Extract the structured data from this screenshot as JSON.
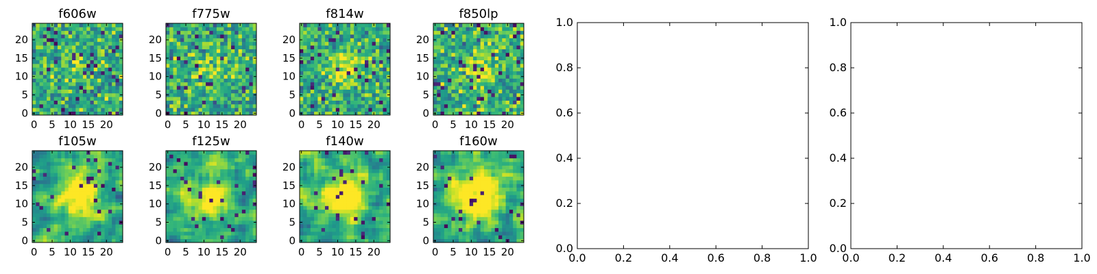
{
  "figure": {
    "background": "#ffffff",
    "colormap": "viridis"
  },
  "chart_data": [
    {
      "type": "heatmap",
      "title": "f606w",
      "xticks": [
        "0",
        "5",
        "10",
        "15",
        "20"
      ],
      "yticks": [
        "0",
        "5",
        "10",
        "15",
        "20"
      ],
      "xlim": [
        -0.5,
        24.5
      ],
      "ylim": [
        -0.5,
        24.5
      ],
      "grid_size": 25,
      "seed": 606,
      "center_brightness": 0.15,
      "noise_smoothing": 0,
      "blob_radius": 3
    },
    {
      "type": "heatmap",
      "title": "f775w",
      "xticks": [
        "0",
        "5",
        "10",
        "15",
        "20"
      ],
      "yticks": [
        "0",
        "5",
        "10",
        "15",
        "20"
      ],
      "xlim": [
        -0.5,
        24.5
      ],
      "ylim": [
        -0.5,
        24.5
      ],
      "grid_size": 25,
      "seed": 775,
      "center_brightness": 0.25,
      "noise_smoothing": 0,
      "blob_radius": 3
    },
    {
      "type": "heatmap",
      "title": "f814w",
      "xticks": [
        "0",
        "5",
        "10",
        "15",
        "20"
      ],
      "yticks": [
        "0",
        "5",
        "10",
        "15",
        "20"
      ],
      "xlim": [
        -0.5,
        24.5
      ],
      "ylim": [
        -0.5,
        24.5
      ],
      "grid_size": 25,
      "seed": 814,
      "center_brightness": 0.45,
      "noise_smoothing": 0,
      "blob_radius": 3
    },
    {
      "type": "heatmap",
      "title": "f850lp",
      "xticks": [
        "0",
        "5",
        "10",
        "15",
        "20"
      ],
      "yticks": [
        "0",
        "5",
        "10",
        "15",
        "20"
      ],
      "xlim": [
        -0.5,
        24.5
      ],
      "ylim": [
        -0.5,
        24.5
      ],
      "grid_size": 25,
      "seed": 850,
      "center_brightness": 0.35,
      "noise_smoothing": 0,
      "blob_radius": 3
    },
    {
      "type": "heatmap",
      "title": "f105w",
      "xticks": [
        "0",
        "5",
        "10",
        "15",
        "20"
      ],
      "yticks": [
        "0",
        "5",
        "10",
        "15",
        "20"
      ],
      "xlim": [
        -0.5,
        24.5
      ],
      "ylim": [
        -0.5,
        24.5
      ],
      "grid_size": 25,
      "seed": 105,
      "center_brightness": 0.5,
      "noise_smoothing": 1,
      "blob_radius": 4
    },
    {
      "type": "heatmap",
      "title": "f125w",
      "xticks": [
        "0",
        "5",
        "10",
        "15",
        "20"
      ],
      "yticks": [
        "0",
        "5",
        "10",
        "15",
        "20"
      ],
      "xlim": [
        -0.5,
        24.5
      ],
      "ylim": [
        -0.5,
        24.5
      ],
      "grid_size": 25,
      "seed": 125,
      "center_brightness": 0.45,
      "noise_smoothing": 1,
      "blob_radius": 4
    },
    {
      "type": "heatmap",
      "title": "f140w",
      "xticks": [
        "0",
        "5",
        "10",
        "15",
        "20"
      ],
      "yticks": [
        "0",
        "5",
        "10",
        "15",
        "20"
      ],
      "xlim": [
        -0.5,
        24.5
      ],
      "ylim": [
        -0.5,
        24.5
      ],
      "grid_size": 25,
      "seed": 140,
      "center_brightness": 0.6,
      "noise_smoothing": 1,
      "blob_radius": 4
    },
    {
      "type": "heatmap",
      "title": "f160w",
      "xticks": [
        "0",
        "5",
        "10",
        "15",
        "20"
      ],
      "yticks": [
        "0",
        "5",
        "10",
        "15",
        "20"
      ],
      "xlim": [
        -0.5,
        24.5
      ],
      "ylim": [
        -0.5,
        24.5
      ],
      "grid_size": 25,
      "seed": 160,
      "center_brightness": 0.75,
      "noise_smoothing": 1,
      "blob_radius": 4
    },
    {
      "type": "line",
      "title": "",
      "series": [],
      "xlim": [
        0.0,
        1.0
      ],
      "ylim": [
        0.0,
        1.0
      ],
      "xticks": [
        "0.0",
        "0.2",
        "0.4",
        "0.6",
        "0.8",
        "1.0"
      ],
      "yticks": [
        "0.0",
        "0.2",
        "0.4",
        "0.6",
        "0.8",
        "1.0"
      ]
    },
    {
      "type": "line",
      "title": "",
      "series": [],
      "xlim": [
        0.0,
        1.0
      ],
      "ylim": [
        0.0,
        1.0
      ],
      "xticks": [
        "0.0",
        "0.2",
        "0.4",
        "0.6",
        "0.8",
        "1.0"
      ],
      "yticks": [
        "0.0",
        "0.2",
        "0.4",
        "0.6",
        "0.8",
        "1.0"
      ]
    }
  ]
}
